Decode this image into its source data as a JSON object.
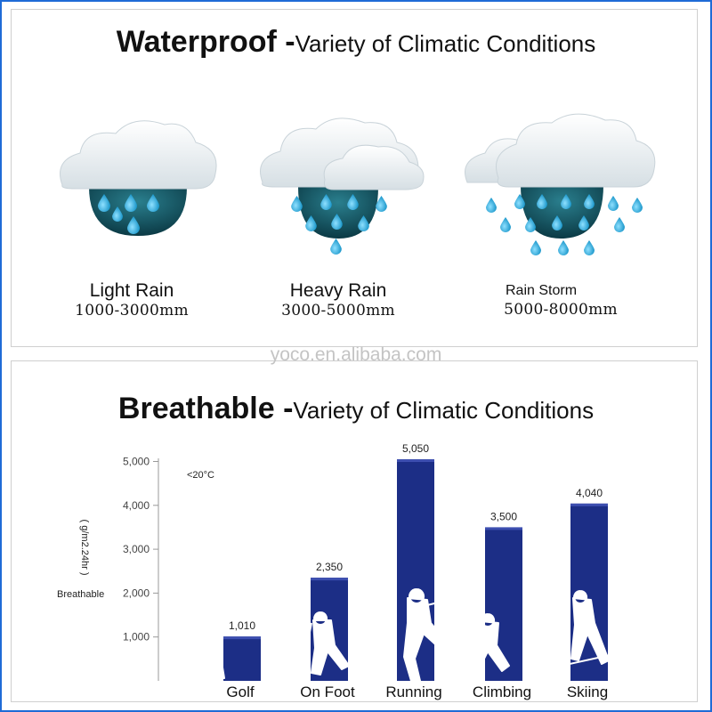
{
  "waterproof": {
    "title_bold": "Waterproof -",
    "title_rest": "Variety of Climatic Conditions",
    "levels": [
      {
        "name": "Light Rain",
        "range": "1000-3000mm"
      },
      {
        "name": "Heavy Rain",
        "range": "3000-5000mm"
      },
      {
        "name": "Rain Storm",
        "range": "5000-8000mm"
      }
    ],
    "icons": [
      "cloud-light-rain-icon",
      "cloud-heavy-rain-icon",
      "cloud-rain-storm-icon"
    ]
  },
  "watermark": "yoco.en.alibaba.com",
  "breathable": {
    "title_bold": "Breathable -",
    "title_rest": "Variety of Climatic Conditions"
  },
  "colors": {
    "bar": "#1c2e86",
    "bar_light": "#3d4fb0",
    "drop": "#2aa8d8",
    "cloud": "#e8eef2",
    "basin": "#0e4a58",
    "frame": "#1f6bd6"
  },
  "chart_data": {
    "type": "bar",
    "title": "Breathable -Variety of Climatic Conditions",
    "categories": [
      "Golf",
      "On Foot",
      "Running",
      "Climbing",
      "Skiing"
    ],
    "values": [
      1010,
      2350,
      5050,
      3500,
      4040
    ],
    "value_labels": [
      "1,010",
      "2,350",
      "5,050",
      "3,500",
      "4,040"
    ],
    "ylabel": "( g/m2.24hr )",
    "ylabel_side": "Breathable",
    "yticks": [
      1000,
      2000,
      3000,
      4000,
      5000
    ],
    "ytick_labels": [
      "1,000",
      "2,000",
      "3,000",
      "4,000",
      "5,000"
    ],
    "annotation": "<20°C",
    "ylim": [
      0,
      5300
    ],
    "grid": false,
    "icons": [
      "golfer-icon",
      "hiker-icon",
      "runner-icon",
      "climber-icon",
      "skier-icon"
    ]
  }
}
